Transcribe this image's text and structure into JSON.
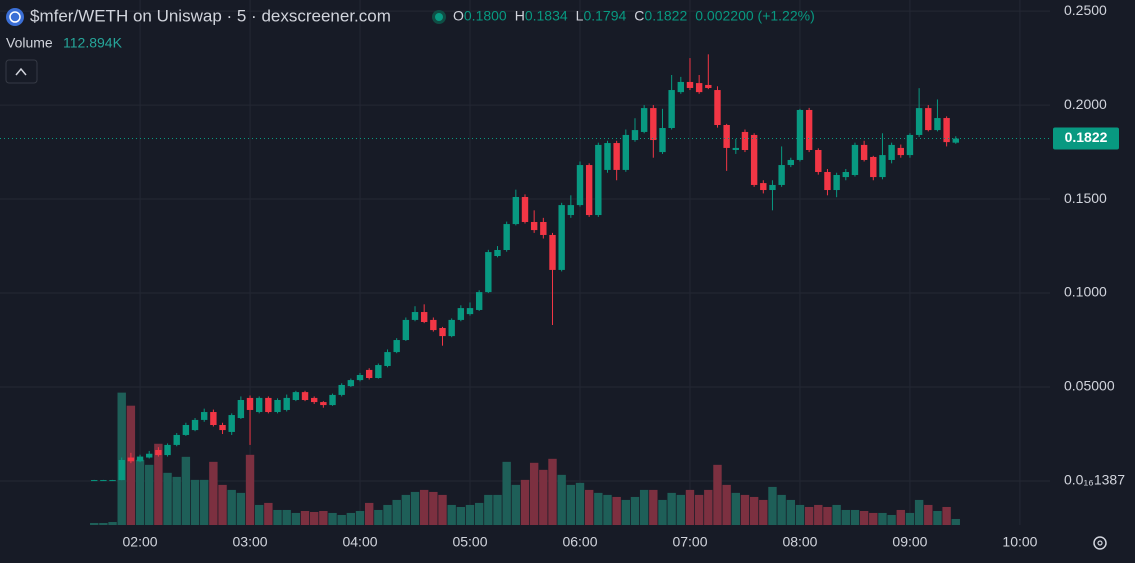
{
  "header": {
    "title": "$mfer/WETH on Uniswap · 5 · dexscreener.com",
    "ohlc": [
      {
        "key": "O",
        "value": "0.1800"
      },
      {
        "key": "H",
        "value": "0.1834"
      },
      {
        "key": "L",
        "value": "0.1794"
      },
      {
        "key": "C",
        "value": "0.1822"
      }
    ],
    "change": "0.002200 (+1.22%)",
    "volume_label": "Volume",
    "volume_value": "112.894K"
  },
  "chart_data": {
    "type": "candlestick",
    "up_color": "#089981",
    "down_color": "#f23645",
    "volume_up_color": "#1e5f58",
    "volume_down_color": "#7c3040",
    "grid": true,
    "xlim": [
      43.6,
      616.4
    ],
    "xticks": [
      {
        "value": 120,
        "label": "02:00"
      },
      {
        "value": 180,
        "label": "03:00"
      },
      {
        "value": 240,
        "label": "04:00"
      },
      {
        "value": 300,
        "label": "05:00"
      },
      {
        "value": 360,
        "label": "06:00"
      },
      {
        "value": 420,
        "label": "07:00"
      },
      {
        "value": 480,
        "label": "08:00"
      },
      {
        "value": 540,
        "label": "09:00"
      },
      {
        "value": 600,
        "label": "10:00"
      }
    ],
    "ylim": [
      -0.0234,
      0.2559
    ],
    "yticks": [
      {
        "value": 1.387e-17,
        "label": "0.0₁₆1387"
      },
      {
        "value": 0.05,
        "label": "0.05000"
      },
      {
        "value": 0.1,
        "label": "0.1000"
      },
      {
        "value": 0.15,
        "label": "0.1500"
      },
      {
        "value": 0.2,
        "label": "0.2000"
      },
      {
        "value": 0.25,
        "label": "0.2500"
      }
    ],
    "volume_lim": [
      0,
      3000
    ],
    "x": [
      95,
      100,
      105,
      110,
      115,
      120,
      125,
      130,
      135,
      140,
      145,
      150,
      155,
      160,
      165,
      170,
      175,
      180,
      185,
      190,
      195,
      200,
      205,
      210,
      215,
      220,
      225,
      230,
      235,
      240,
      245,
      250,
      255,
      260,
      265,
      270,
      275,
      280,
      285,
      290,
      295,
      300,
      305,
      310,
      315,
      320,
      325,
      330,
      335,
      340,
      345,
      350,
      355,
      360,
      365,
      370,
      375,
      380,
      385,
      390,
      395,
      400,
      405,
      410,
      415,
      420,
      425,
      430,
      435,
      440,
      445,
      450,
      455,
      460,
      465,
      470,
      475,
      480,
      485,
      490,
      495,
      500,
      505,
      510,
      515,
      520,
      525,
      530,
      535,
      540,
      545,
      550,
      555,
      560,
      565
    ],
    "open": [
      0.0005,
      0.0005,
      0.0005,
      0.0005,
      0.0125,
      0.0105,
      0.0125,
      0.0165,
      0.0138,
      0.0192,
      0.0245,
      0.0271,
      0.0325,
      0.0367,
      0.0298,
      0.0261,
      0.0335,
      0.0442,
      0.0367,
      0.0442,
      0.0367,
      0.0378,
      0.0431,
      0.0473,
      0.0442,
      0.042,
      0.0404,
      0.0458,
      0.0505,
      0.0537,
      0.0591,
      0.0548,
      0.0612,
      0.0686,
      0.075,
      0.0857,
      0.0899,
      0.0857,
      0.0814,
      0.0771,
      0.0857,
      0.0888,
      0.091,
      0.1005,
      0.1197,
      0.1229,
      0.1367,
      0.1511,
      0.1378,
      0.1378,
      0.1309,
      0.1123,
      0.1415,
      0.1468,
      0.1681,
      0.1415,
      0.1655,
      0.1798,
      0.1655,
      0.1814,
      0.1857,
      0.1984,
      0.175,
      0.1878,
      0.2069,
      0.2123,
      0.2117,
      0.2107,
      0.208,
      0.1894,
      0.1761,
      0.1857,
      0.1841,
      0.1585,
      0.1548,
      0.1575,
      0.1681,
      0.1708,
      0.1974,
      0.1761,
      0.1644,
      0.1548,
      0.1617,
      0.1628,
      0.1788,
      0.1724,
      0.1617,
      0.1708,
      0.1772,
      0.1734,
      0.1841,
      0.1984,
      0.1867,
      0.1931,
      0.18
    ],
    "high": [
      0.0006,
      0.0006,
      0.0006,
      0.0125,
      0.015,
      0.014,
      0.016,
      0.018,
      0.02,
      0.0255,
      0.031,
      0.0335,
      0.0385,
      0.038,
      0.031,
      0.036,
      0.045,
      0.0455,
      0.045,
      0.045,
      0.044,
      0.046,
      0.048,
      0.048,
      0.045,
      0.0425,
      0.0465,
      0.052,
      0.0545,
      0.0575,
      0.06,
      0.0625,
      0.07,
      0.076,
      0.087,
      0.093,
      0.094,
      0.087,
      0.082,
      0.0865,
      0.0935,
      0.095,
      0.1015,
      0.123,
      0.125,
      0.138,
      0.155,
      0.1525,
      0.144,
      0.14,
      0.132,
      0.148,
      0.152,
      0.17,
      0.169,
      0.18,
      0.181,
      0.181,
      0.187,
      0.193,
      0.2,
      0.2,
      0.198,
      0.216,
      0.215,
      0.225,
      0.216,
      0.227,
      0.21,
      0.19,
      0.182,
      0.187,
      0.185,
      0.16,
      0.16,
      0.178,
      0.172,
      0.198,
      0.1985,
      0.177,
      0.166,
      0.164,
      0.166,
      0.18,
      0.181,
      0.173,
      0.185,
      0.18,
      0.179,
      0.185,
      0.209,
      0.2,
      0.203,
      0.194,
      0.1834
    ],
    "low": [
      0.0004,
      0.0004,
      0.0004,
      0.0004,
      0.0095,
      0.01,
      0.012,
      0.013,
      0.013,
      0.0185,
      0.024,
      0.0265,
      0.0315,
      0.029,
      0.025,
      0.0245,
      0.033,
      0.0192,
      0.036,
      0.036,
      0.036,
      0.037,
      0.0425,
      0.0425,
      0.041,
      0.039,
      0.04,
      0.045,
      0.05,
      0.053,
      0.054,
      0.0545,
      0.0605,
      0.068,
      0.0745,
      0.085,
      0.084,
      0.0795,
      0.072,
      0.0765,
      0.085,
      0.088,
      0.0905,
      0.1,
      0.119,
      0.122,
      0.136,
      0.137,
      0.132,
      0.129,
      0.083,
      0.1115,
      0.14,
      0.146,
      0.1405,
      0.1405,
      0.164,
      0.16,
      0.1645,
      0.1805,
      0.185,
      0.172,
      0.174,
      0.187,
      0.206,
      0.208,
      0.206,
      0.2085,
      0.188,
      0.165,
      0.174,
      0.175,
      0.1565,
      0.153,
      0.144,
      0.1565,
      0.167,
      0.17,
      0.175,
      0.163,
      0.152,
      0.151,
      0.16,
      0.162,
      0.17,
      0.16,
      0.1605,
      0.169,
      0.172,
      0.172,
      0.183,
      0.186,
      0.186,
      0.178,
      0.1794
    ],
    "close": [
      0.0005,
      0.0005,
      0.0005,
      0.0112,
      0.0105,
      0.013,
      0.0145,
      0.0138,
      0.0192,
      0.0245,
      0.0298,
      0.0325,
      0.0367,
      0.0298,
      0.0271,
      0.0351,
      0.0431,
      0.0378,
      0.0442,
      0.0367,
      0.0431,
      0.0442,
      0.0473,
      0.0431,
      0.042,
      0.0404,
      0.0458,
      0.0511,
      0.0537,
      0.0564,
      0.0548,
      0.0617,
      0.0686,
      0.075,
      0.0857,
      0.0899,
      0.0846,
      0.0803,
      0.0771,
      0.0857,
      0.092,
      0.092,
      0.1005,
      0.1218,
      0.1229,
      0.1367,
      0.1511,
      0.1378,
      0.1335,
      0.1309,
      0.1123,
      0.1468,
      0.1468,
      0.1681,
      0.1415,
      0.1788,
      0.1798,
      0.1655,
      0.1841,
      0.1867,
      0.1984,
      0.1814,
      0.1878,
      0.208,
      0.2123,
      0.2091,
      0.2069,
      0.2091,
      0.1894,
      0.1772,
      0.1772,
      0.1761,
      0.1575,
      0.1548,
      0.1575,
      0.1681,
      0.1708,
      0.1974,
      0.1761,
      0.1644,
      0.1548,
      0.1628,
      0.1644,
      0.1788,
      0.1708,
      0.1617,
      0.1734,
      0.1788,
      0.1734,
      0.1841,
      0.1984,
      0.1867,
      0.1931,
      0.1803,
      0.1822
    ],
    "volume": [
      38,
      38,
      56,
      2482,
      2237,
      1222,
      1128,
      1523,
      978,
      902,
      1278,
      846,
      846,
      1184,
      752,
      658,
      602,
      1316,
      376,
      414,
      282,
      282,
      226,
      263,
      244,
      263,
      226,
      188,
      226,
      263,
      414,
      282,
      376,
      470,
      564,
      620,
      658,
      620,
      564,
      376,
      338,
      376,
      414,
      564,
      564,
      1184,
      752,
      846,
      1166,
      1034,
      1241,
      940,
      752,
      790,
      658,
      602,
      564,
      526,
      470,
      526,
      658,
      658,
      470,
      602,
      564,
      658,
      564,
      658,
      1128,
      752,
      602,
      564,
      526,
      470,
      714,
      564,
      470,
      376,
      338,
      376,
      338,
      376,
      282,
      282,
      263,
      226,
      226,
      188,
      282,
      226,
      470,
      376,
      263,
      338,
      112.894
    ]
  }
}
